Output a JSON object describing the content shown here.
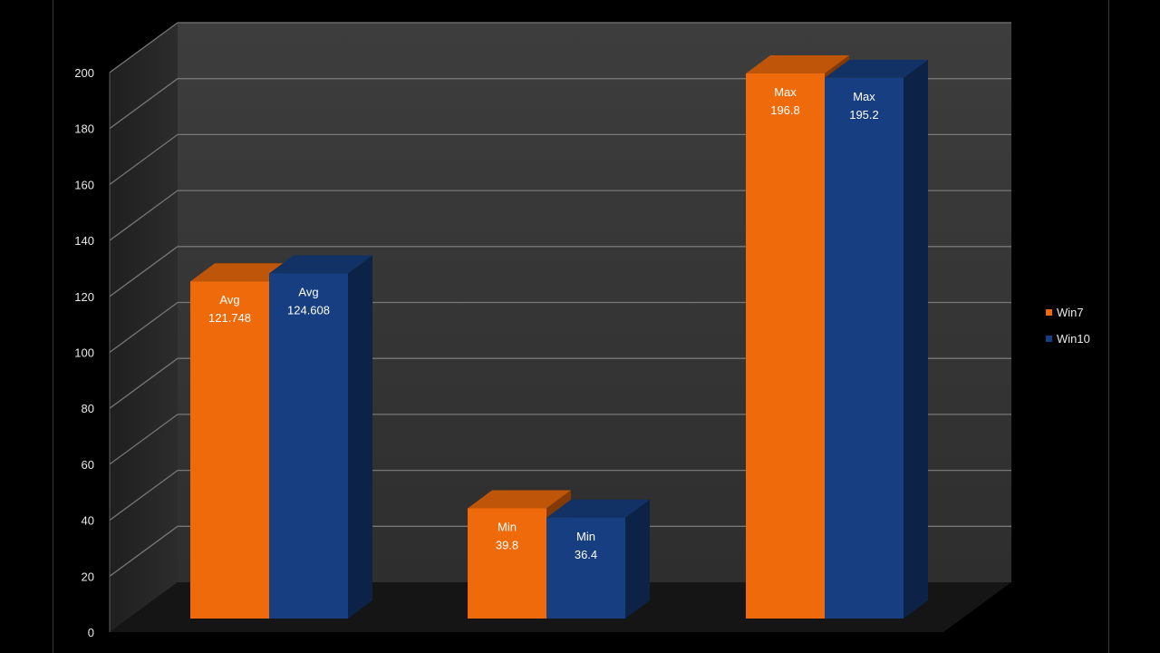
{
  "chart_data": {
    "type": "bar",
    "style": "3d-clustered-column",
    "categories": [
      "Avg",
      "Min",
      "Max"
    ],
    "series": [
      {
        "name": "Win7",
        "color": "#ee6a0a",
        "values": [
          121.748,
          39.8,
          196.8
        ],
        "labels": [
          "121.748",
          "39.8",
          "196.8"
        ]
      },
      {
        "name": "Win10",
        "color": "#163e80",
        "values": [
          124.608,
          36.4,
          195.2
        ],
        "labels": [
          "124.608",
          "36.4",
          "195.2"
        ]
      }
    ],
    "yticks": [
      "0",
      "20",
      "40",
      "60",
      "80",
      "100",
      "120",
      "140",
      "160",
      "180",
      "200"
    ],
    "ylim": [
      0,
      200
    ],
    "title": "",
    "xlabel": "",
    "ylabel": "",
    "grid": true,
    "legend_position": "right",
    "background": "#000000",
    "wall_color": "#3b3b3b"
  }
}
